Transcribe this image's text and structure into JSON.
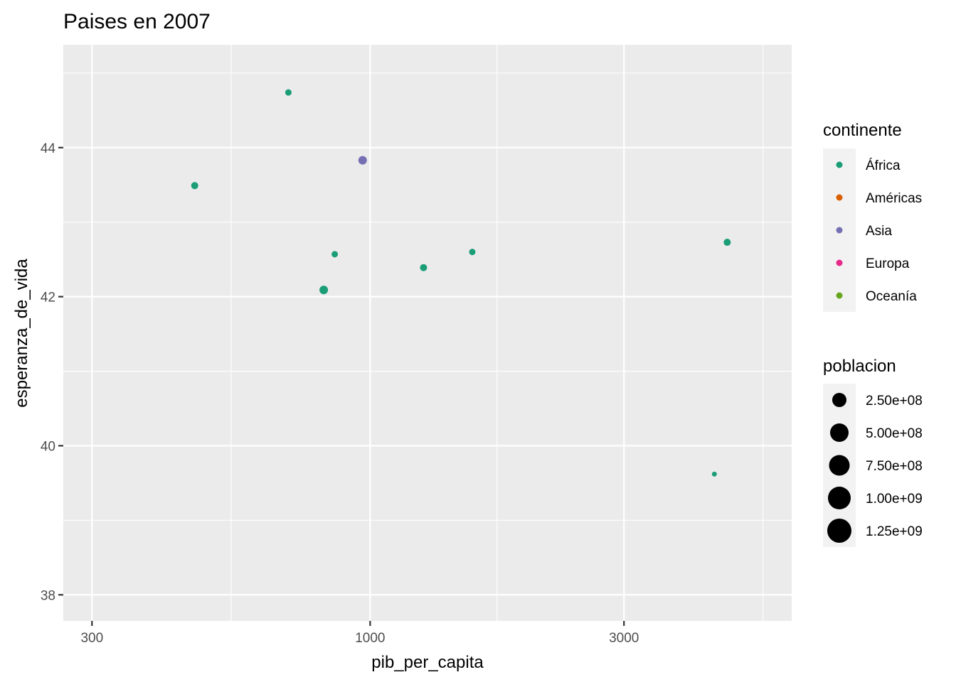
{
  "chart_data": {
    "type": "scatter",
    "title": "Paises en 2007",
    "xlabel": "pib_per_capita",
    "ylabel": "esperanza_de_vida",
    "x_scale": "log10",
    "xlim": [
      265,
      6200
    ],
    "ylim": [
      37.65,
      45.38
    ],
    "x_ticks": [
      300,
      1000,
      3000
    ],
    "x_tick_labels": [
      "300",
      "1000",
      "3000"
    ],
    "x_minor_breaks": [
      548,
      1732,
      5477
    ],
    "y_ticks": [
      38,
      40,
      42,
      44
    ],
    "y_tick_labels": [
      "38",
      "40",
      "42",
      "44"
    ],
    "y_minor_breaks": [
      39,
      41,
      43,
      45
    ],
    "grid": true,
    "legend_position": "right",
    "color_legend": {
      "title": "continente",
      "entries": [
        {
          "label": "África",
          "color": "#1B9E77"
        },
        {
          "label": "Américas",
          "color": "#D95F02"
        },
        {
          "label": "Asia",
          "color": "#7570B3"
        },
        {
          "label": "Europa",
          "color": "#E7298A"
        },
        {
          "label": "Oceanía",
          "color": "#66A61E"
        }
      ]
    },
    "size_legend": {
      "title": "poblacion",
      "entries": [
        {
          "label": "2.50e+08",
          "value": 250000000,
          "diameter": 20
        },
        {
          "label": "5.00e+08",
          "value": 500000000,
          "diameter": 26
        },
        {
          "label": "7.50e+08",
          "value": 750000000,
          "diameter": 29
        },
        {
          "label": "1.00e+09",
          "value": 1000000000,
          "diameter": 32
        },
        {
          "label": "1.25e+09",
          "value": 1250000000,
          "diameter": 34
        }
      ]
    },
    "points": [
      {
        "x": 468,
        "y": 43.49,
        "continente": "África",
        "diameter": 10
      },
      {
        "x": 702,
        "y": 44.74,
        "continente": "África",
        "diameter": 9
      },
      {
        "x": 968,
        "y": 43.83,
        "continente": "Asia",
        "diameter": 12
      },
      {
        "x": 858,
        "y": 42.57,
        "continente": "África",
        "diameter": 9
      },
      {
        "x": 818,
        "y": 42.09,
        "continente": "África",
        "diameter": 12
      },
      {
        "x": 1260,
        "y": 42.39,
        "continente": "África",
        "diameter": 10
      },
      {
        "x": 1556,
        "y": 42.6,
        "continente": "África",
        "diameter": 9
      },
      {
        "x": 4690,
        "y": 42.73,
        "continente": "África",
        "diameter": 10
      },
      {
        "x": 4437,
        "y": 39.62,
        "continente": "África",
        "diameter": 7
      }
    ]
  }
}
